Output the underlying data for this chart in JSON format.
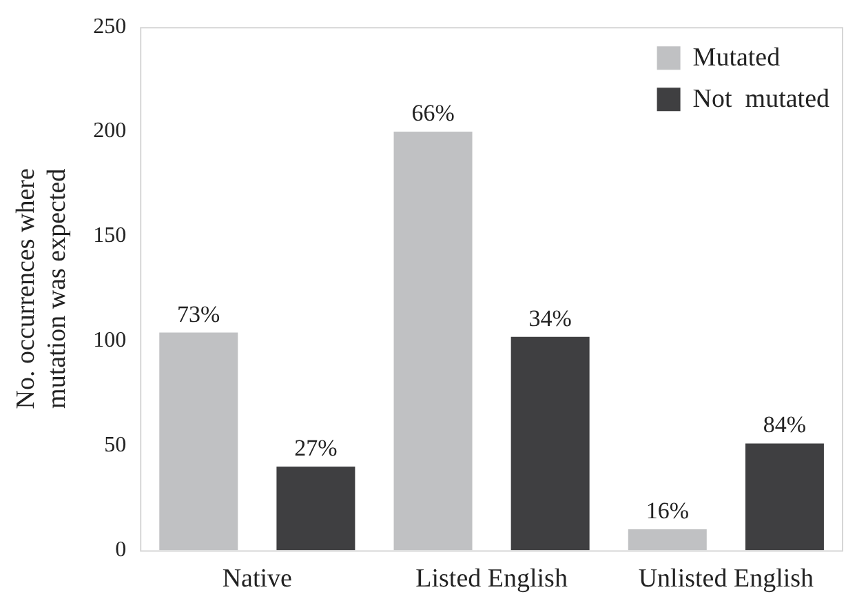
{
  "chart_data": {
    "type": "bar",
    "ylabel": "No. occurrences where\nmutation was expected",
    "categories": [
      "Native",
      "Listed English",
      "Unlisted English"
    ],
    "series": [
      {
        "name": "Mutated",
        "color": "#c0c1c3",
        "values": [
          104,
          200,
          10
        ]
      },
      {
        "name": "Not  mutated",
        "color": "#3f3f41",
        "values": [
          40,
          102,
          51
        ]
      }
    ],
    "annotations": [
      "73%",
      "66%",
      "16%",
      "27%",
      "34%",
      "84%"
    ],
    "ylim": [
      0,
      250
    ],
    "yticks": [
      0,
      50,
      100,
      150,
      200,
      250
    ],
    "grid": false,
    "legend": "top right"
  }
}
